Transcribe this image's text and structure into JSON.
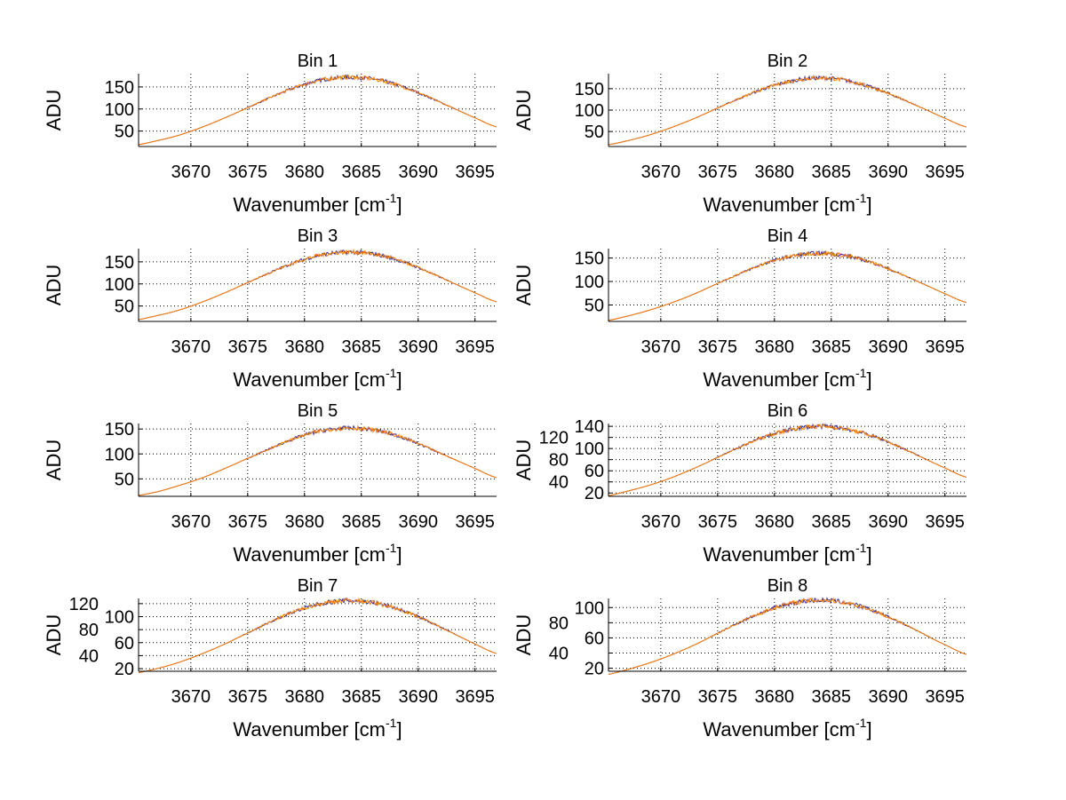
{
  "chart_data": [
    {
      "type": "line",
      "title": "Bin 1",
      "xlabel": "Wavenumber [cm",
      "xlabel_sup": "-1",
      "xlabel_end": "]",
      "ylabel": "ADU",
      "xlim": [
        3665.4,
        3696.9
      ],
      "ylim": [
        15,
        180
      ],
      "xticks": [
        3670,
        3675,
        3680,
        3685,
        3690,
        3695
      ],
      "yticks": [
        50,
        100,
        150
      ],
      "grid": true,
      "x": [
        3665,
        3667,
        3669,
        3671,
        3673,
        3675,
        3677,
        3679,
        3681,
        3683,
        3685,
        3687,
        3689,
        3691,
        3693,
        3695,
        3697
      ],
      "series": [
        {
          "name": "series-1",
          "color": "#3b2a8c",
          "values": [
            18,
            28,
            41,
            59,
            80,
            103,
            126,
            147,
            163,
            171,
            171,
            163,
            147,
            126,
            103,
            80,
            59
          ]
        },
        {
          "name": "series-2",
          "color": "#ff8000",
          "values": [
            18,
            28,
            41,
            59,
            80,
            103,
            126,
            147,
            163,
            171,
            171,
            163,
            147,
            126,
            103,
            80,
            59
          ]
        }
      ]
    },
    {
      "type": "line",
      "title": "Bin 2",
      "xlabel": "Wavenumber [cm",
      "xlabel_sup": "-1",
      "xlabel_end": "]",
      "ylabel": "ADU",
      "xlim": [
        3665.4,
        3696.9
      ],
      "ylim": [
        15,
        185
      ],
      "xticks": [
        3670,
        3675,
        3680,
        3685,
        3690,
        3695
      ],
      "yticks": [
        50,
        100,
        150
      ],
      "grid": true,
      "x": [
        3665,
        3667,
        3669,
        3671,
        3673,
        3675,
        3677,
        3679,
        3681,
        3683,
        3685,
        3687,
        3689,
        3691,
        3693,
        3695,
        3697
      ],
      "series": [
        {
          "name": "series-1",
          "color": "#3b2a8c",
          "values": [
            18,
            28,
            42,
            60,
            81,
            105,
            128,
            149,
            165,
            174,
            174,
            165,
            149,
            128,
            105,
            81,
            60
          ]
        },
        {
          "name": "series-2",
          "color": "#ff8000",
          "values": [
            18,
            28,
            42,
            60,
            81,
            105,
            128,
            149,
            165,
            174,
            174,
            165,
            149,
            128,
            105,
            81,
            60
          ]
        }
      ]
    },
    {
      "type": "line",
      "title": "Bin 3",
      "xlabel": "Wavenumber [cm",
      "xlabel_sup": "-1",
      "xlabel_end": "]",
      "ylabel": "ADU",
      "xlim": [
        3665.4,
        3696.9
      ],
      "ylim": [
        15,
        180
      ],
      "xticks": [
        3670,
        3675,
        3680,
        3685,
        3690,
        3695
      ],
      "yticks": [
        50,
        100,
        150
      ],
      "grid": true,
      "x": [
        3665,
        3667,
        3669,
        3671,
        3673,
        3675,
        3677,
        3679,
        3681,
        3683,
        3685,
        3687,
        3689,
        3691,
        3693,
        3695,
        3697
      ],
      "series": [
        {
          "name": "series-1",
          "color": "#3b2a8c",
          "values": [
            18,
            28,
            41,
            59,
            80,
            103,
            126,
            147,
            163,
            171,
            171,
            163,
            147,
            126,
            103,
            80,
            59
          ]
        },
        {
          "name": "series-2",
          "color": "#ff8000",
          "values": [
            18,
            28,
            41,
            59,
            80,
            103,
            126,
            147,
            163,
            171,
            171,
            163,
            147,
            126,
            103,
            80,
            59
          ]
        }
      ]
    },
    {
      "type": "line",
      "title": "Bin 4",
      "xlabel": "Wavenumber [cm",
      "xlabel_sup": "-1",
      "xlabel_end": "]",
      "ylabel": "ADU",
      "xlim": [
        3665.4,
        3696.9
      ],
      "ylim": [
        15,
        170
      ],
      "xticks": [
        3670,
        3675,
        3680,
        3685,
        3690,
        3695
      ],
      "yticks": [
        50,
        100,
        150
      ],
      "grid": true,
      "x": [
        3665,
        3667,
        3669,
        3671,
        3673,
        3675,
        3677,
        3679,
        3681,
        3683,
        3685,
        3687,
        3689,
        3691,
        3693,
        3695,
        3697
      ],
      "series": [
        {
          "name": "series-1",
          "color": "#3b2a8c",
          "values": [
            16,
            26,
            39,
            55,
            74,
            96,
            117,
            137,
            151,
            159,
            159,
            151,
            137,
            117,
            96,
            74,
            55
          ]
        },
        {
          "name": "series-2",
          "color": "#ff8000",
          "values": [
            16,
            26,
            39,
            55,
            74,
            96,
            117,
            137,
            151,
            159,
            159,
            151,
            137,
            117,
            96,
            74,
            55
          ]
        }
      ]
    },
    {
      "type": "line",
      "title": "Bin 5",
      "xlabel": "Wavenumber [cm",
      "xlabel_sup": "-1",
      "xlabel_end": "]",
      "ylabel": "ADU",
      "xlim": [
        3665.4,
        3696.9
      ],
      "ylim": [
        15,
        161
      ],
      "xticks": [
        3670,
        3675,
        3680,
        3685,
        3690,
        3695
      ],
      "yticks": [
        50,
        100,
        150
      ],
      "grid": true,
      "x": [
        3665,
        3667,
        3669,
        3671,
        3673,
        3675,
        3677,
        3679,
        3681,
        3683,
        3685,
        3687,
        3689,
        3691,
        3693,
        3695,
        3697
      ],
      "series": [
        {
          "name": "series-1",
          "color": "#3b2a8c",
          "values": [
            16,
            24,
            37,
            52,
            71,
            91,
            111,
            130,
            144,
            151,
            151,
            144,
            130,
            111,
            91,
            71,
            52
          ]
        },
        {
          "name": "series-2",
          "color": "#ff8000",
          "values": [
            16,
            24,
            37,
            52,
            71,
            91,
            111,
            130,
            144,
            151,
            151,
            144,
            130,
            111,
            91,
            71,
            52
          ]
        }
      ]
    },
    {
      "type": "line",
      "title": "Bin 6",
      "xlabel": "Wavenumber [cm",
      "xlabel_sup": "-1",
      "xlabel_end": "]",
      "ylabel": "ADU",
      "xlim": [
        3665.4,
        3696.9
      ],
      "ylim": [
        14,
        145
      ],
      "xticks": [
        3670,
        3675,
        3680,
        3685,
        3690,
        3695
      ],
      "yticks": [
        20,
        40,
        60,
        80,
        100,
        120,
        140
      ],
      "grid": true,
      "x": [
        3665,
        3667,
        3669,
        3671,
        3673,
        3675,
        3677,
        3679,
        3681,
        3683,
        3685,
        3687,
        3689,
        3691,
        3693,
        3695,
        3697
      ],
      "series": [
        {
          "name": "series-1",
          "color": "#3b2a8c",
          "values": [
            14,
            23,
            34,
            48,
            65,
            84,
            103,
            120,
            132,
            139,
            139,
            132,
            120,
            103,
            84,
            65,
            48
          ]
        },
        {
          "name": "series-2",
          "color": "#ff8000",
          "values": [
            14,
            23,
            34,
            48,
            65,
            84,
            103,
            120,
            132,
            139,
            139,
            132,
            120,
            103,
            84,
            65,
            48
          ]
        }
      ]
    },
    {
      "type": "line",
      "title": "Bin 7",
      "xlabel": "Wavenumber [cm",
      "xlabel_sup": "-1",
      "xlabel_end": "]",
      "ylabel": "ADU",
      "xlim": [
        3665.4,
        3696.9
      ],
      "ylim": [
        16,
        128
      ],
      "xticks": [
        3670,
        3675,
        3680,
        3685,
        3690,
        3695
      ],
      "yticks": [
        20,
        40,
        60,
        80,
        100,
        120
      ],
      "grid": true,
      "x": [
        3665,
        3667,
        3669,
        3671,
        3673,
        3675,
        3677,
        3679,
        3681,
        3683,
        3685,
        3687,
        3689,
        3691,
        3693,
        3695,
        3697
      ],
      "series": [
        {
          "name": "series-1",
          "color": "#3b2a8c",
          "values": [
            13,
            20,
            30,
            43,
            58,
            75,
            92,
            107,
            118,
            124,
            124,
            118,
            107,
            92,
            75,
            58,
            43
          ]
        },
        {
          "name": "series-2",
          "color": "#ff8000",
          "values": [
            13,
            20,
            30,
            43,
            58,
            75,
            92,
            107,
            118,
            124,
            124,
            118,
            107,
            92,
            75,
            58,
            43
          ]
        }
      ]
    },
    {
      "type": "line",
      "title": "Bin 8",
      "xlabel": "Wavenumber [cm",
      "xlabel_sup": "-1",
      "xlabel_end": "]",
      "ylabel": "ADU",
      "xlim": [
        3665.4,
        3696.9
      ],
      "ylim": [
        16,
        112
      ],
      "xticks": [
        3670,
        3675,
        3680,
        3685,
        3690,
        3695
      ],
      "yticks": [
        20,
        40,
        60,
        80,
        100
      ],
      "grid": true,
      "x": [
        3665,
        3667,
        3669,
        3671,
        3673,
        3675,
        3677,
        3679,
        3681,
        3683,
        3685,
        3687,
        3689,
        3691,
        3693,
        3695,
        3697
      ],
      "series": [
        {
          "name": "series-1",
          "color": "#3b2a8c",
          "values": [
            11,
            18,
            27,
            38,
            51,
            66,
            81,
            94,
            104,
            109,
            109,
            104,
            94,
            81,
            66,
            51,
            38
          ]
        },
        {
          "name": "series-2",
          "color": "#ff8000",
          "values": [
            11,
            18,
            27,
            38,
            51,
            66,
            81,
            94,
            104,
            109,
            109,
            104,
            94,
            81,
            66,
            51,
            38
          ]
        }
      ]
    }
  ]
}
